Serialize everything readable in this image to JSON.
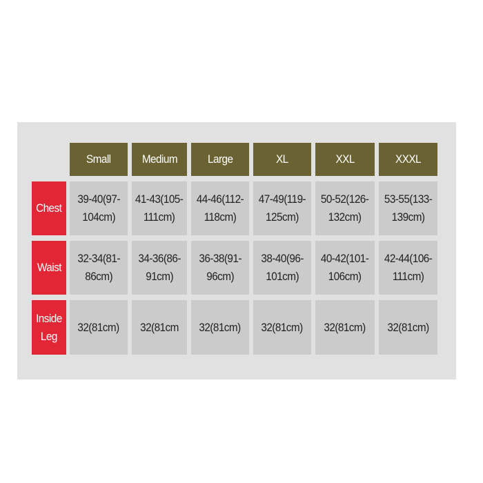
{
  "sizes": [
    "Small",
    "Medium",
    "Large",
    "XL",
    "XXL",
    "XXXL"
  ],
  "rows": [
    {
      "label": [
        "Chest"
      ],
      "values": [
        [
          "39-40(97-",
          "104cm)"
        ],
        [
          "41-43(105-",
          "111cm)"
        ],
        [
          "44-46(112-",
          "118cm)"
        ],
        [
          "47-49(119-",
          "125cm)"
        ],
        [
          "50-52(126-",
          "132cm)"
        ],
        [
          "53-55(133-",
          "139cm)"
        ]
      ]
    },
    {
      "label": [
        "Waist"
      ],
      "values": [
        [
          "32-34(81-",
          "86cm)"
        ],
        [
          "34-36(86-",
          "91cm)"
        ],
        [
          "36-38(91-",
          "96cm)"
        ],
        [
          "38-40(96-",
          "101cm)"
        ],
        [
          "40-42(101-",
          "106cm)"
        ],
        [
          "42-44(106-",
          "111cm)"
        ]
      ]
    },
    {
      "label": [
        "Inside",
        "Leg"
      ],
      "values": [
        [
          "32(81cm)"
        ],
        [
          "32(81cm"
        ],
        [
          "32(81cm)"
        ],
        [
          "32(81cm)"
        ],
        [
          "32(81cm)"
        ],
        [
          "32(81cm)"
        ]
      ]
    }
  ],
  "colors": {
    "header": "#6a6232",
    "row_label": "#e32636",
    "cell": "#cbcbcb",
    "panel": "#e1e1e1"
  }
}
